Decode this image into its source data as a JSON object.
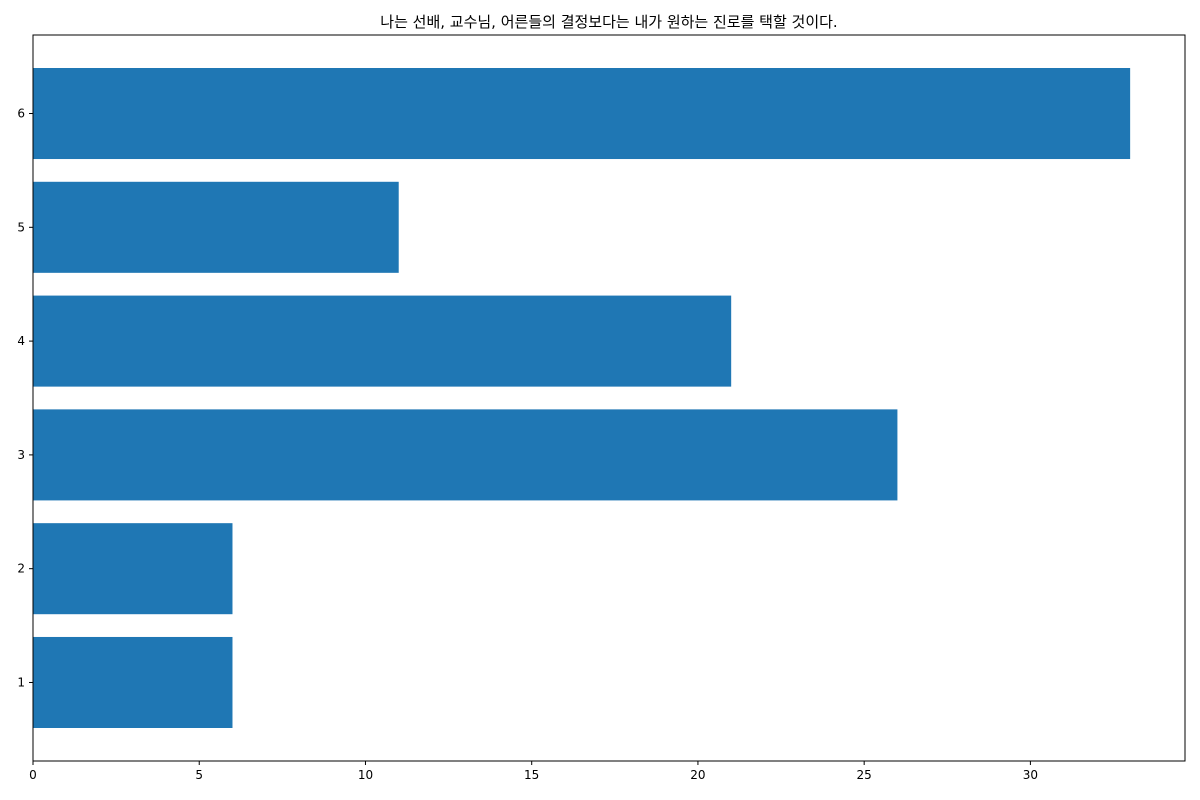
{
  "chart_data": {
    "type": "bar",
    "orientation": "horizontal",
    "title": "나는 선배, 교수님, 어른들의 결정보다는 내가 원하는 진로를 택할 것이다.",
    "xlabel": "",
    "ylabel": "",
    "categories": [
      "1",
      "2",
      "3",
      "4",
      "5",
      "6"
    ],
    "values": [
      6,
      6,
      26,
      21,
      11,
      33
    ],
    "xlim": [
      0,
      34.65
    ],
    "xticks": [
      0,
      5,
      10,
      15,
      20,
      25,
      30
    ],
    "xtick_labels": [
      "0",
      "5",
      "10",
      "15",
      "20",
      "25",
      "30"
    ],
    "grid": false,
    "bar_color": "#1f77b4"
  }
}
